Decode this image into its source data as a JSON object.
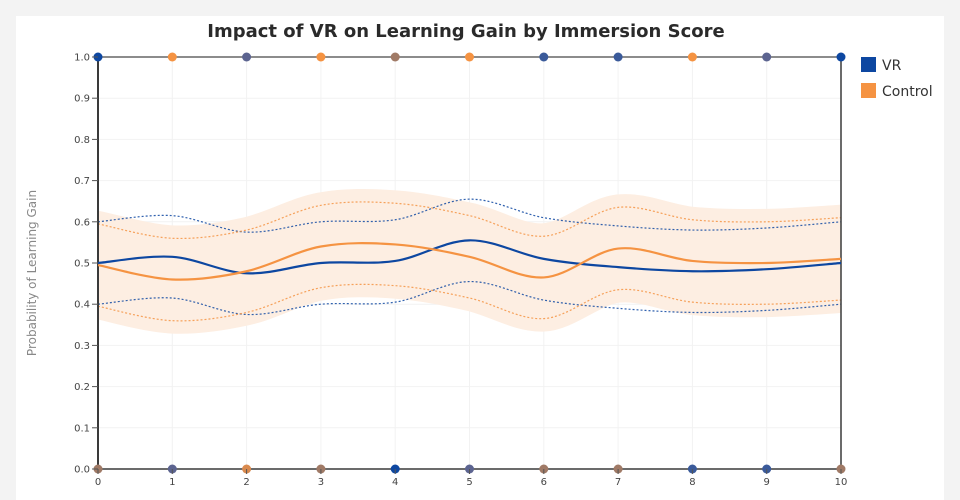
{
  "chart_data": {
    "type": "line",
    "title": "Impact of VR on Learning Gain by Immersion Score",
    "xlabel": "",
    "ylabel": "Probability of Learning Gain",
    "xlim": [
      0,
      10
    ],
    "ylim": [
      0,
      1
    ],
    "x_ticks": [
      "0",
      "1",
      "2",
      "3",
      "4",
      "5",
      "6",
      "7",
      "8",
      "9",
      "10"
    ],
    "y_ticks": [
      "0.0",
      "0.1",
      "0.2",
      "0.3",
      "0.4",
      "0.5",
      "0.6",
      "0.7",
      "0.8",
      "0.9",
      "1.0"
    ],
    "grid": true,
    "legend_position": "right",
    "x": [
      0,
      1,
      2,
      3,
      4,
      5,
      6,
      7,
      8,
      9,
      10
    ],
    "series": [
      {
        "name": "VR",
        "color": "#0d47a1",
        "values": [
          0.5,
          0.515,
          0.475,
          0.5,
          0.505,
          0.555,
          0.51,
          0.49,
          0.48,
          0.485,
          0.5
        ],
        "band_lower": [
          0.4,
          0.415,
          0.375,
          0.4,
          0.405,
          0.455,
          0.41,
          0.39,
          0.38,
          0.385,
          0.4
        ],
        "band_upper": [
          0.6,
          0.615,
          0.575,
          0.6,
          0.605,
          0.655,
          0.61,
          0.59,
          0.58,
          0.585,
          0.6
        ],
        "outcomes_at_1": [
          0,
          6,
          7,
          10
        ],
        "outcomes_at_0": [
          4,
          8,
          9
        ]
      },
      {
        "name": "Control",
        "color": "#f59342",
        "values": [
          0.495,
          0.46,
          0.48,
          0.54,
          0.545,
          0.515,
          0.465,
          0.535,
          0.505,
          0.5,
          0.51
        ],
        "band_lower": [
          0.395,
          0.36,
          0.38,
          0.44,
          0.445,
          0.415,
          0.365,
          0.435,
          0.405,
          0.4,
          0.41
        ],
        "band_upper": [
          0.595,
          0.56,
          0.58,
          0.64,
          0.645,
          0.615,
          0.565,
          0.635,
          0.605,
          0.6,
          0.61
        ],
        "outcomes_at_1": [
          1,
          3,
          5,
          8
        ],
        "outcomes_at_0": [
          2
        ]
      }
    ],
    "observed_points": {
      "at_1": [
        {
          "x": 0,
          "color": "#0d47a1"
        },
        {
          "x": 1,
          "color": "#f59342"
        },
        {
          "x": 2,
          "color": "#5c6490"
        },
        {
          "x": 3,
          "color": "#f59342"
        },
        {
          "x": 4,
          "color": "#a07a66"
        },
        {
          "x": 5,
          "color": "#f59342"
        },
        {
          "x": 6,
          "color": "#3a5a9a"
        },
        {
          "x": 7,
          "color": "#3a5a9a"
        },
        {
          "x": 8,
          "color": "#f59342"
        },
        {
          "x": 9,
          "color": "#5c6490"
        },
        {
          "x": 10,
          "color": "#0d47a1"
        }
      ],
      "at_0": [
        {
          "x": 0,
          "color": "#a07a66"
        },
        {
          "x": 1,
          "color": "#5c6490"
        },
        {
          "x": 2,
          "color": "#d98a4e"
        },
        {
          "x": 3,
          "color": "#a07a66"
        },
        {
          "x": 4,
          "color": "#0d47a1"
        },
        {
          "x": 5,
          "color": "#5c6490"
        },
        {
          "x": 6,
          "color": "#a07a66"
        },
        {
          "x": 7,
          "color": "#a07a66"
        },
        {
          "x": 8,
          "color": "#3a5a9a"
        },
        {
          "x": 9,
          "color": "#3a5a9a"
        },
        {
          "x": 10,
          "color": "#a07a66"
        }
      ]
    },
    "band_fill_color": "#fdeee2"
  }
}
